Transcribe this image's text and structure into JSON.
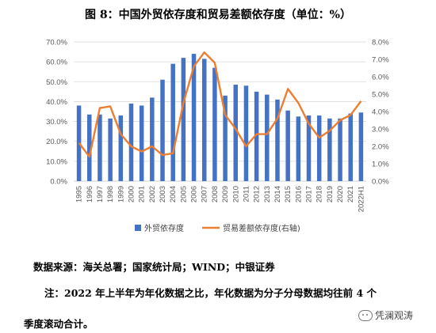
{
  "title": "图 8：中国外贸依存度和贸易差额依存度（单位：%）",
  "source": "数据来源：海关总署；国家统计局；WIND；中银证券",
  "note_line1": "注：2022 年上半年为年化数据之比，年化数据为分子分母数据均往前 4 个",
  "note_line2": "季度滚动合计。",
  "watermark": "凭澜观涛",
  "colors": {
    "bar": "#4472C4",
    "line": "#ED7D31",
    "grid": "#D9D9D9",
    "axis": "#BFBFBF"
  },
  "chart_data": {
    "type": "bar+line",
    "title": "",
    "categories": [
      "1995",
      "1996",
      "1997",
      "1998",
      "1999",
      "2000",
      "2001",
      "2002",
      "2003",
      "2004",
      "2005",
      "2006",
      "2007",
      "2008",
      "2009",
      "2010",
      "2011",
      "2012",
      "2013",
      "2014",
      "2015",
      "2016",
      "2017",
      "2018",
      "2019",
      "2020",
      "2021",
      "2022H1"
    ],
    "left_axis": {
      "min": 0,
      "max": 70,
      "step": 10,
      "ticks": [
        "0.0%",
        "10.0%",
        "20.0%",
        "30.0%",
        "40.0%",
        "50.0%",
        "60.0%",
        "70.0%"
      ]
    },
    "right_axis": {
      "min": 0,
      "max": 8,
      "step": 1,
      "ticks": [
        "0.0%",
        "1.0%",
        "2.0%",
        "3.0%",
        "4.0%",
        "5.0%",
        "6.0%",
        "7.0%",
        "8.0%"
      ]
    },
    "series": [
      {
        "name": "外贸依存度",
        "type": "bar",
        "axis": "left",
        "values": [
          38,
          33.5,
          33.5,
          31.5,
          33,
          39,
          38,
          42,
          51,
          59,
          62,
          64,
          61.5,
          57,
          43,
          48.5,
          48,
          45,
          43.5,
          41,
          35.5,
          32.5,
          33,
          33,
          31.5,
          31.5,
          34,
          34.5
        ]
      },
      {
        "name": "贸易差额依存度(右轴)",
        "type": "line",
        "axis": "right",
        "values": [
          2.2,
          1.4,
          4.2,
          4.3,
          2.7,
          2.0,
          1.7,
          2.0,
          1.5,
          1.6,
          4.5,
          6.6,
          7.4,
          6.8,
          3.8,
          3.0,
          2.0,
          2.7,
          2.7,
          3.6,
          5.3,
          4.5,
          3.3,
          2.5,
          2.9,
          3.5,
          3.8,
          4.6
        ]
      }
    ],
    "legend_position": "bottom"
  }
}
